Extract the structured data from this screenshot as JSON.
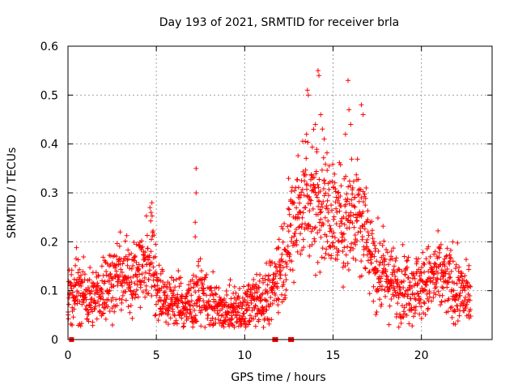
{
  "chart_data": {
    "type": "scatter",
    "title": "Day 193 of 2021, SRMTID for receiver brla",
    "xlabel": "GPS time / hours",
    "ylabel": "SRMTID / TECUs",
    "xlim": [
      0,
      24
    ],
    "ylim": [
      0,
      0.6
    ],
    "xticks": [
      0,
      5,
      10,
      15,
      20
    ],
    "xtick_labels": [
      "0",
      "5",
      "10",
      "15",
      "20"
    ],
    "yticks": [
      0,
      0.1,
      0.2,
      0.3,
      0.4,
      0.5,
      0.6
    ],
    "ytick_labels": [
      "0",
      "0.1",
      "0.2",
      "0.3",
      "0.4",
      "0.5",
      "0.6"
    ],
    "grid": true,
    "marker": "plus",
    "color": "#ff0000",
    "series": [
      {
        "name": "SRMTID",
        "trend": [
          [
            0.0,
            0.09
          ],
          [
            0.5,
            0.11
          ],
          [
            1.0,
            0.09
          ],
          [
            1.5,
            0.08
          ],
          [
            2.0,
            0.11
          ],
          [
            2.5,
            0.12
          ],
          [
            3.0,
            0.13
          ],
          [
            3.5,
            0.13
          ],
          [
            4.0,
            0.14
          ],
          [
            4.5,
            0.15
          ],
          [
            4.8,
            0.2
          ],
          [
            5.0,
            0.1
          ],
          [
            5.5,
            0.08
          ],
          [
            6.0,
            0.08
          ],
          [
            6.5,
            0.07
          ],
          [
            7.0,
            0.07
          ],
          [
            7.5,
            0.1
          ],
          [
            8.0,
            0.07
          ],
          [
            8.5,
            0.06
          ],
          [
            9.0,
            0.05
          ],
          [
            9.5,
            0.06
          ],
          [
            10.0,
            0.06
          ],
          [
            10.5,
            0.08
          ],
          [
            11.0,
            0.08
          ],
          [
            11.5,
            0.1
          ],
          [
            12.0,
            0.15
          ],
          [
            12.5,
            0.2
          ],
          [
            13.0,
            0.27
          ],
          [
            13.5,
            0.29
          ],
          [
            14.0,
            0.29
          ],
          [
            14.5,
            0.27
          ],
          [
            15.0,
            0.25
          ],
          [
            15.5,
            0.24
          ],
          [
            16.0,
            0.26
          ],
          [
            16.5,
            0.28
          ],
          [
            17.0,
            0.2
          ],
          [
            17.5,
            0.14
          ],
          [
            18.0,
            0.13
          ],
          [
            18.5,
            0.11
          ],
          [
            19.0,
            0.11
          ],
          [
            19.5,
            0.11
          ],
          [
            20.0,
            0.11
          ],
          [
            20.5,
            0.12
          ],
          [
            21.0,
            0.13
          ],
          [
            21.5,
            0.12
          ],
          [
            22.0,
            0.1
          ],
          [
            22.5,
            0.09
          ],
          [
            22.8,
            0.09
          ]
        ],
        "outliers": [
          [
            4.75,
            0.28
          ],
          [
            4.7,
            0.26
          ],
          [
            7.25,
            0.35
          ],
          [
            7.25,
            0.3
          ],
          [
            7.2,
            0.24
          ],
          [
            7.2,
            0.21
          ],
          [
            13.55,
            0.51
          ],
          [
            13.6,
            0.5
          ],
          [
            14.15,
            0.55
          ],
          [
            14.2,
            0.54
          ],
          [
            14.3,
            0.46
          ],
          [
            15.85,
            0.53
          ],
          [
            15.9,
            0.47
          ],
          [
            16.6,
            0.48
          ],
          [
            16.7,
            0.46
          ],
          [
            14.0,
            0.44
          ],
          [
            13.9,
            0.43
          ],
          [
            15.7,
            0.42
          ],
          [
            16.0,
            0.44
          ],
          [
            14.5,
            0.41
          ],
          [
            13.5,
            0.42
          ]
        ],
        "near_zero": [
          0.2,
          11.7,
          11.75,
          12.6,
          12.65
        ]
      }
    ]
  }
}
